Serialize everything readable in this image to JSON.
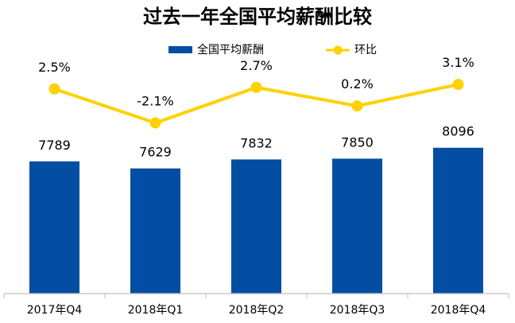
{
  "chart_data": {
    "type": "bar",
    "title": "过去一年全国平均薪酬比较",
    "categories": [
      "2017年Q4",
      "2018年Q1",
      "2018年Q2",
      "2018年Q3",
      "2018年Q4"
    ],
    "series": [
      {
        "name": "全国平均薪酬",
        "type": "bar",
        "values": [
          7789,
          7629,
          7832,
          7850,
          8096
        ],
        "labels": [
          "7789",
          "7629",
          "7832",
          "7850",
          "8096"
        ],
        "color": "#034EA2"
      },
      {
        "name": "环比",
        "type": "line",
        "values": [
          2.5,
          -2.1,
          2.7,
          0.2,
          3.1
        ],
        "labels": [
          "2.5%",
          "-2.1%",
          "2.7%",
          "0.2%",
          "3.1%"
        ],
        "color": "#FFD100"
      }
    ],
    "legend_position": "top-center",
    "grid": false
  }
}
